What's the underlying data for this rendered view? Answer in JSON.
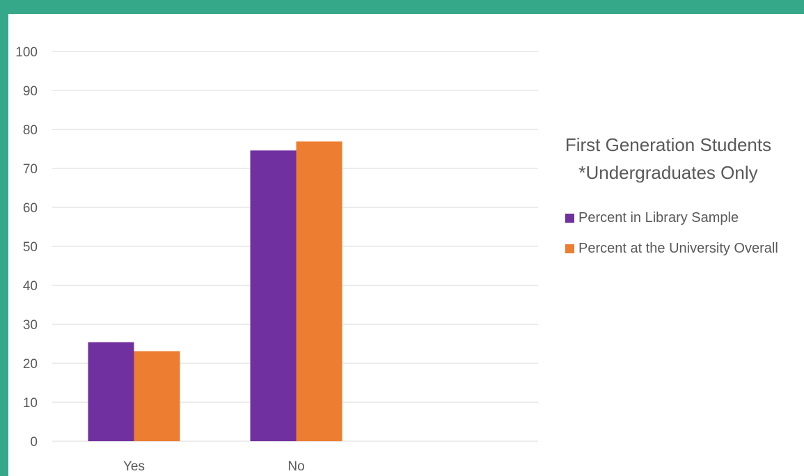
{
  "colors": {
    "frame": "#35a88a",
    "series1": "#7030a0",
    "series2": "#ed7d31",
    "grid": "#d9d9d9",
    "text": "#595959"
  },
  "chart_data": {
    "type": "bar",
    "title": "First Generation Students",
    "subtitle": "*Undergraduates Only",
    "categories": [
      "Yes",
      "No"
    ],
    "series": [
      {
        "name": "Percent in Library Sample",
        "values": [
          25.4,
          74.6
        ]
      },
      {
        "name": "Percent at the University Overall",
        "values": [
          23.1,
          76.9
        ]
      }
    ],
    "ylim": [
      0,
      100
    ],
    "yticks": [
      0,
      10,
      20,
      30,
      40,
      50,
      60,
      70,
      80,
      90,
      100
    ],
    "grid": true,
    "legend": "right"
  }
}
